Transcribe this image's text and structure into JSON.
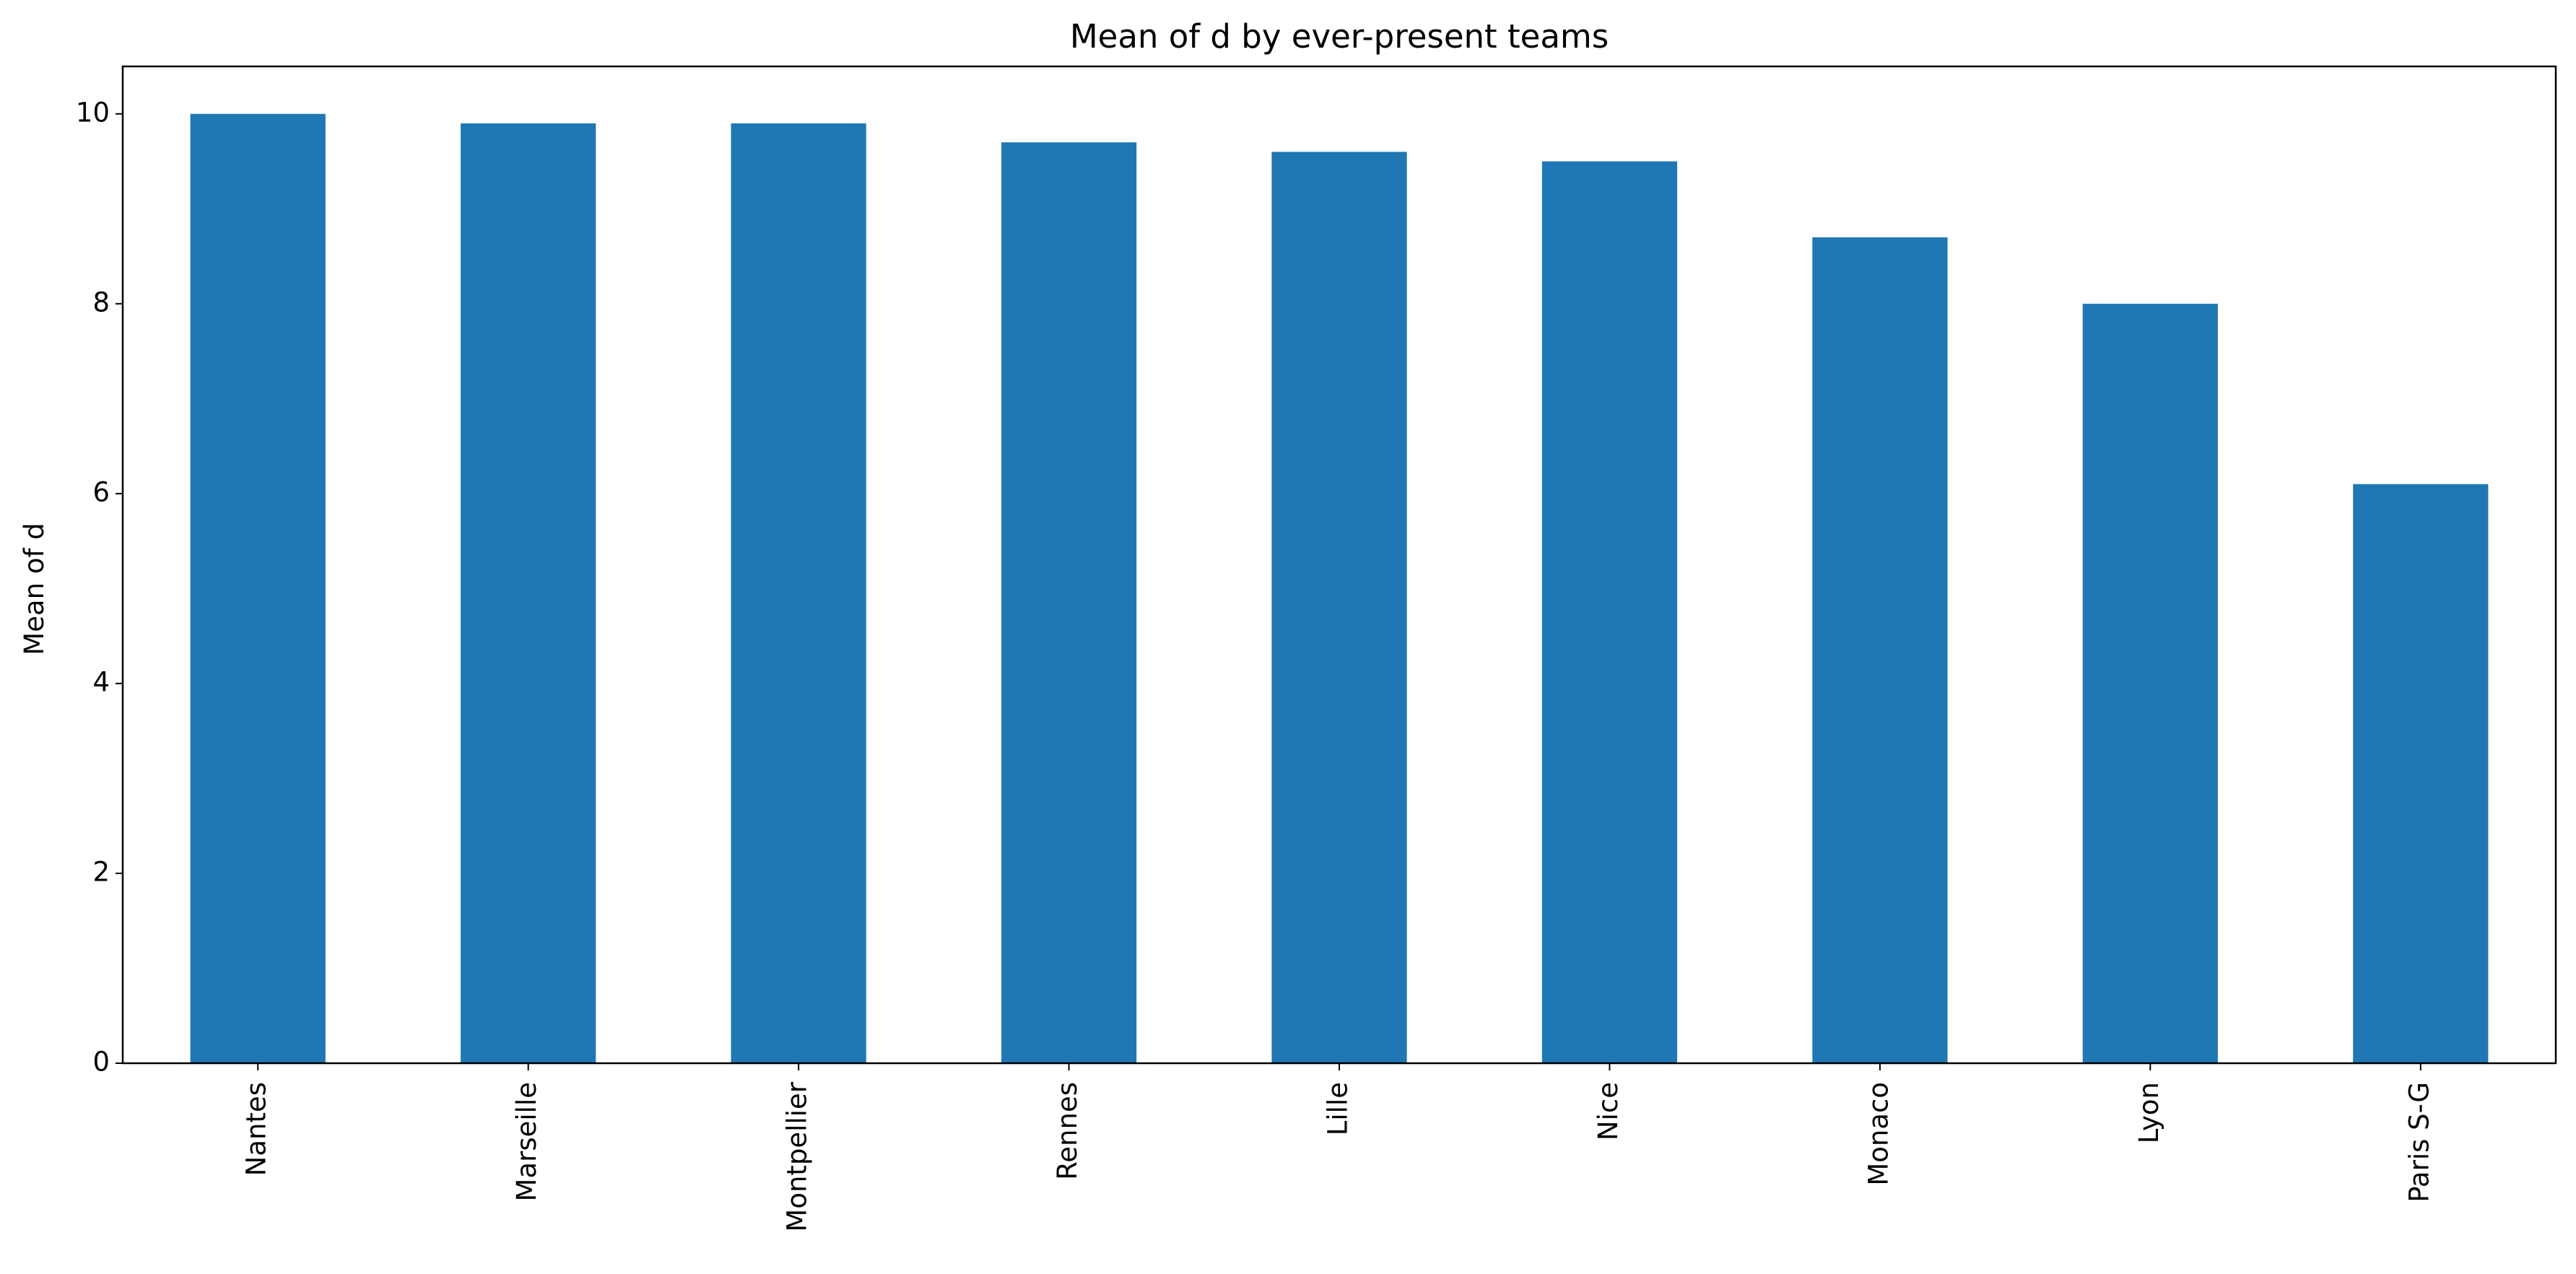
{
  "chart_data": {
    "type": "bar",
    "title": "Mean of d by ever-present teams",
    "xlabel": "",
    "ylabel": "Mean of d",
    "categories": [
      "Nantes",
      "Marseille",
      "Montpellier",
      "Rennes",
      "Lille",
      "Nice",
      "Monaco",
      "Lyon",
      "Paris S-G"
    ],
    "values": [
      10.0,
      9.9,
      9.9,
      9.7,
      9.6,
      9.5,
      8.7,
      8.0,
      6.1
    ],
    "ylim": [
      0,
      10.5
    ],
    "yticks": [
      "0",
      "2",
      "4",
      "6",
      "8",
      "10"
    ],
    "grid": false,
    "legend": "none",
    "colors": {
      "bar": "#1f77b4",
      "axis": "#000000",
      "background": "#ffffff"
    }
  }
}
